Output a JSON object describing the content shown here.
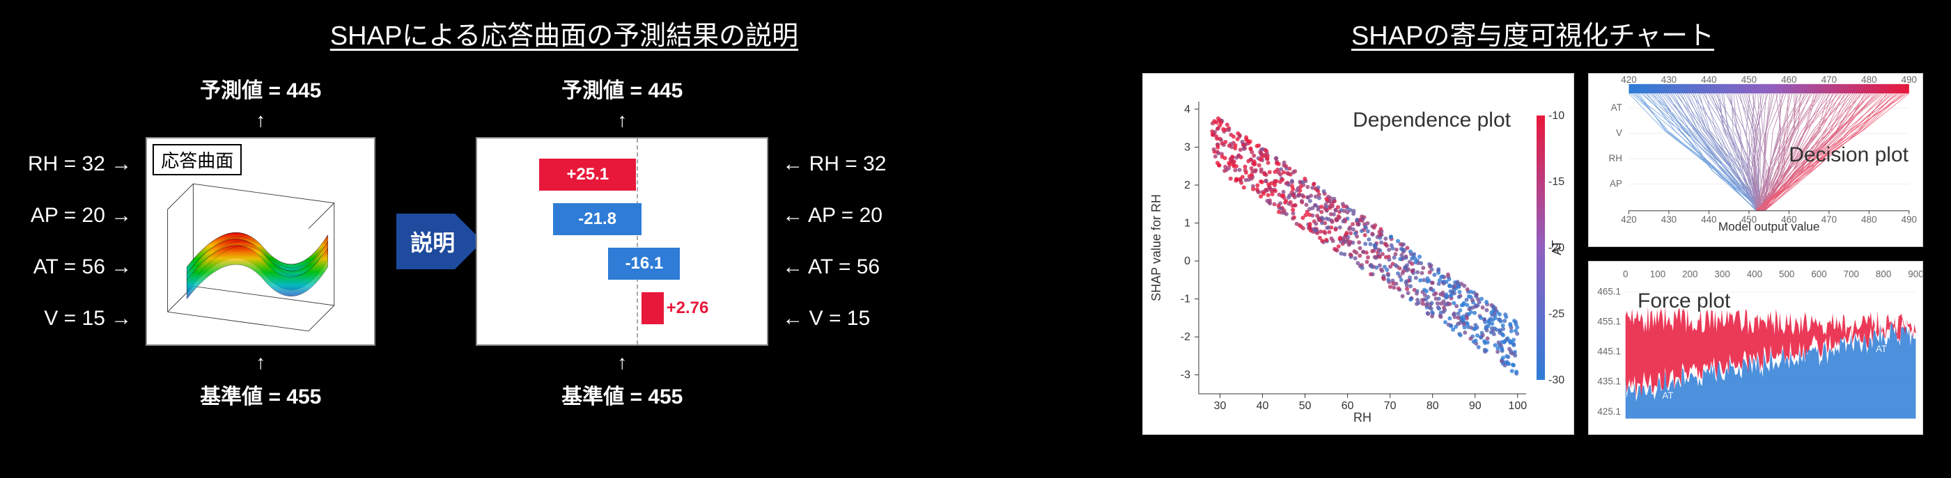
{
  "left": {
    "heading": "SHAPによる応答曲面の予測結果の説明",
    "predicted_label": "予測値 = 445",
    "base_label": "基準値 = 455",
    "inputs": [
      {
        "name": "RH",
        "value": 32,
        "display": "RH = 32"
      },
      {
        "name": "AP",
        "value": 20,
        "display": "AP = 20"
      },
      {
        "name": "AT",
        "value": 56,
        "display": "AT = 56"
      },
      {
        "name": "V",
        "value": 15,
        "display": "V = 15"
      }
    ],
    "surface_panel_label": "応答曲面",
    "explain_label": "説明",
    "waterfall": {
      "bars": [
        {
          "label": "+25.1",
          "value": 25.1,
          "color": "red",
          "left_pct": 20,
          "width_pct": 35,
          "text_inside": true
        },
        {
          "label": "-21.8",
          "value": -21.8,
          "color": "blue",
          "left_pct": 25,
          "width_pct": 32,
          "text_inside": true
        },
        {
          "label": "-16.1",
          "value": -16.1,
          "color": "blue",
          "left_pct": 45,
          "width_pct": 26,
          "text_inside": true
        },
        {
          "label": "+2.76",
          "value": 2.76,
          "color": "red",
          "left_pct": 57,
          "width_pct": 8,
          "text_inside": false
        }
      ],
      "dash_position_pct": 55
    }
  },
  "right": {
    "heading": "SHAPの寄与度可視化チャート",
    "dependence": {
      "title": "Dependence plot",
      "xlabel": "RH",
      "ylabel": "SHAP value for\nRH",
      "color_label": "AT",
      "x_ticks": [
        30,
        40,
        50,
        60,
        70,
        80,
        90,
        100
      ],
      "y_ticks": [
        -3,
        -2,
        -1,
        0,
        1,
        2,
        3,
        4
      ],
      "color_ticks": [
        -10,
        -15,
        -20,
        -25,
        -30
      ],
      "xlim": [
        25,
        102
      ],
      "ylim": [
        -3.5,
        4.2
      ],
      "low_color": "#2e7cd6",
      "high_color": "#e8183b",
      "marker_size": 3
    },
    "decision": {
      "title": "Decision plot",
      "xlabel": "Model output value",
      "x_ticks": [
        420,
        430,
        440,
        450,
        460,
        470,
        480,
        490
      ],
      "y_features": [
        "AT",
        "V",
        "RH",
        "AP"
      ],
      "low_color": "#2e7cd6",
      "high_color": "#e8183b"
    },
    "force": {
      "title": "Force plot",
      "top_ticks": [
        0,
        100,
        200,
        300,
        400,
        500,
        600,
        700,
        800,
        900
      ],
      "y_ticks": [
        425.1,
        435.1,
        445.1,
        455.1,
        465.1
      ],
      "blue_color": "#2e7cd6",
      "red_color": "#e8183b",
      "feature_label": "AT"
    }
  }
}
